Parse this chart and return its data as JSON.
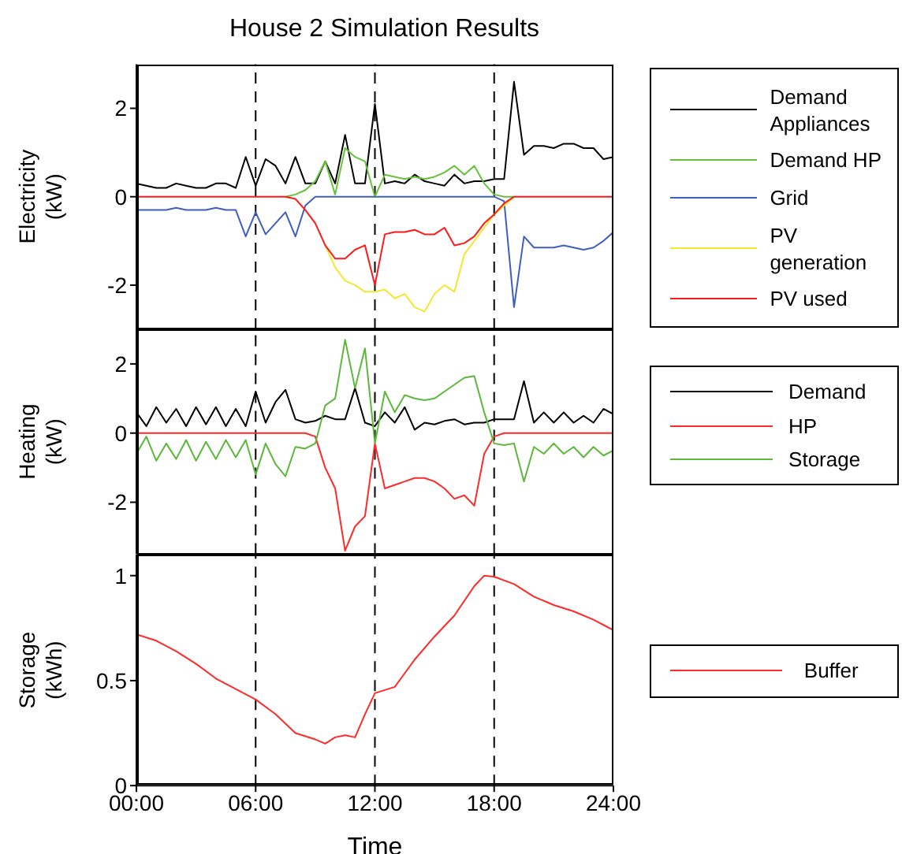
{
  "chart_data": [
    {
      "type": "line",
      "title": "House 2 Simulation Results",
      "ylabel": "Electricity (kW)",
      "legend": "right",
      "tick_labels": "y",
      "x": [
        0,
        0.5,
        1,
        1.5,
        2,
        2.5,
        3,
        3.5,
        4,
        4.5,
        5,
        5.5,
        6,
        6.5,
        7,
        7.5,
        8,
        8.5,
        9,
        9.5,
        10,
        10.5,
        11,
        11.5,
        12,
        12.5,
        13,
        13.5,
        14,
        14.5,
        15,
        15.5,
        16,
        16.5,
        17,
        17.5,
        18,
        18.5,
        19,
        19.5,
        20,
        20.5,
        21,
        21.5,
        22,
        22.5,
        23,
        23.5,
        24
      ],
      "xlim": [
        0,
        24
      ],
      "ylim": [
        -3,
        3
      ],
      "yticks": [
        -2,
        0,
        2
      ],
      "ref_lines": [
        {
          "axis": "x",
          "value": 6,
          "color": "#000000",
          "line_style": "dashed"
        },
        {
          "axis": "x",
          "value": 12,
          "color": "#000000",
          "line_style": "dashed"
        },
        {
          "axis": "x",
          "value": 18,
          "color": "#000000",
          "line_style": "dashed"
        }
      ],
      "series": [
        {
          "name": "Demand Appliances",
          "color": "#000000",
          "values": [
            0.3,
            0.25,
            0.2,
            0.2,
            0.3,
            0.25,
            0.2,
            0.2,
            0.3,
            0.3,
            0.2,
            0.9,
            0.25,
            0.85,
            0.7,
            0.3,
            0.9,
            0.3,
            0.3,
            0.8,
            0.3,
            1.4,
            0.3,
            0.3,
            2.1,
            0.3,
            0.35,
            0.3,
            0.5,
            0.35,
            0.3,
            0.25,
            0.5,
            0.3,
            0.35,
            0.35,
            0.4,
            0.4,
            2.6,
            0.95,
            1.15,
            1.15,
            1.1,
            1.2,
            1.2,
            1.1,
            1.1,
            0.85,
            0.9
          ]
        },
        {
          "name": "Demand HP",
          "color": "#66c23a",
          "values": [
            null,
            null,
            null,
            null,
            null,
            null,
            null,
            null,
            null,
            null,
            null,
            null,
            null,
            null,
            null,
            0,
            0.05,
            0.15,
            0.35,
            0.8,
            0.05,
            1.1,
            0.9,
            0.8,
            0,
            0.5,
            0.45,
            0.4,
            0.45,
            0.4,
            0.45,
            0.55,
            0.7,
            0.5,
            0.7,
            0.3,
            0.05,
            0,
            0,
            null,
            null,
            null,
            null,
            null,
            null,
            null,
            null,
            null,
            null
          ]
        },
        {
          "name": "Grid",
          "color": "#3f5fbf",
          "values": [
            -0.3,
            -0.3,
            -0.3,
            -0.3,
            -0.25,
            -0.3,
            -0.3,
            -0.3,
            -0.25,
            -0.3,
            -0.3,
            -0.9,
            -0.35,
            -0.85,
            -0.6,
            -0.35,
            -0.9,
            -0.2,
            0,
            0,
            0,
            0,
            0,
            0,
            0,
            0,
            0,
            0,
            0,
            0,
            0,
            0,
            0,
            0,
            0,
            0,
            0,
            -0.1,
            -2.5,
            -0.9,
            -1.15,
            -1.15,
            -1.15,
            -1.1,
            -1.15,
            -1.2,
            -1.15,
            -1.0,
            -0.8
          ]
        },
        {
          "name": "PV generation",
          "color": "#f2e830",
          "values": [
            null,
            null,
            null,
            null,
            null,
            null,
            null,
            null,
            null,
            null,
            null,
            null,
            null,
            null,
            null,
            null,
            null,
            null,
            null,
            -1.1,
            -1.6,
            -1.9,
            -2.0,
            -2.15,
            -2.15,
            -2.1,
            -2.3,
            -2.2,
            -2.5,
            -2.6,
            -2.2,
            -2.0,
            -2.15,
            -1.3,
            -1.0,
            -0.7,
            -0.4,
            -0.2,
            0,
            null,
            null,
            null,
            null,
            null,
            null,
            null,
            null,
            null,
            null
          ]
        },
        {
          "name": "PV used",
          "color": "#ff1a1a",
          "values": [
            0,
            0,
            0,
            0,
            0,
            0,
            0,
            0,
            0,
            0,
            0,
            0,
            0,
            0,
            0,
            0,
            -0.05,
            -0.3,
            -0.6,
            -1.1,
            -1.4,
            -1.4,
            -1.2,
            -1.1,
            -2.0,
            -0.85,
            -0.8,
            -0.8,
            -0.75,
            -0.85,
            -0.85,
            -0.7,
            -1.1,
            -1.05,
            -0.9,
            -0.6,
            -0.4,
            -0.15,
            0,
            0,
            0,
            0,
            0,
            0,
            0,
            0,
            0,
            0,
            0
          ]
        }
      ]
    },
    {
      "type": "line",
      "ylabel": "Heating (kW)",
      "legend": "right",
      "tick_labels": "y",
      "x": [
        0,
        0.5,
        1,
        1.5,
        2,
        2.5,
        3,
        3.5,
        4,
        4.5,
        5,
        5.5,
        6,
        6.5,
        7,
        7.5,
        8,
        8.5,
        9,
        9.5,
        10,
        10.5,
        11,
        11.5,
        12,
        12.5,
        13,
        13.5,
        14,
        14.5,
        15,
        15.5,
        16,
        16.5,
        17,
        17.5,
        18,
        18.5,
        19,
        19.5,
        20,
        20.5,
        21,
        21.5,
        22,
        22.5,
        23,
        23.5,
        24
      ],
      "xlim": [
        0,
        24
      ],
      "ylim": [
        -3.5,
        3
      ],
      "yticks": [
        -2,
        0,
        2
      ],
      "ref_lines": [
        {
          "axis": "x",
          "value": 6,
          "color": "#000000",
          "line_style": "dashed"
        },
        {
          "axis": "x",
          "value": 12,
          "color": "#000000",
          "line_style": "dashed"
        },
        {
          "axis": "x",
          "value": 18,
          "color": "#000000",
          "line_style": "dashed"
        }
      ],
      "series": [
        {
          "name": "Demand",
          "color": "#000000",
          "values": [
            0.6,
            0.2,
            0.75,
            0.3,
            0.7,
            0.2,
            0.75,
            0.25,
            0.75,
            0.2,
            0.7,
            0.2,
            1.2,
            0.3,
            0.9,
            1.25,
            0.4,
            0.3,
            0.35,
            0.5,
            0.4,
            0.4,
            1.3,
            0.3,
            0.2,
            0.6,
            0.3,
            0.75,
            0.1,
            0.3,
            0.25,
            0.35,
            0.4,
            0.25,
            0.3,
            0.3,
            0.4,
            0.4,
            0.4,
            1.5,
            0.3,
            0.6,
            0.3,
            0.6,
            0.3,
            0.5,
            0.3,
            0.7,
            0.55
          ]
        },
        {
          "name": "HP",
          "color": "#ff2a2a",
          "values": [
            0,
            0,
            0,
            0,
            0,
            0,
            0,
            0,
            0,
            0,
            0,
            0,
            0,
            0,
            0,
            0,
            0,
            0,
            -0.1,
            -1.0,
            -1.6,
            -3.4,
            -2.7,
            -2.4,
            -0.3,
            -1.6,
            -1.5,
            -1.4,
            -1.3,
            -1.3,
            -1.4,
            -1.6,
            -1.9,
            -1.8,
            -2.1,
            -0.6,
            -0.1,
            0,
            0,
            0,
            0,
            0,
            0,
            0,
            0,
            0,
            0,
            0,
            0
          ]
        },
        {
          "name": "Storage",
          "color": "#5cb83a",
          "values": [
            -0.6,
            -0.1,
            -0.8,
            -0.3,
            -0.75,
            -0.2,
            -0.8,
            -0.25,
            -0.75,
            -0.2,
            -0.7,
            -0.2,
            -1.2,
            -0.3,
            -0.9,
            -1.25,
            -0.4,
            -0.45,
            -0.3,
            0.8,
            1.0,
            2.7,
            1.3,
            2.45,
            -0.3,
            1.2,
            0.6,
            1.1,
            1.0,
            0.95,
            1.0,
            1.2,
            1.4,
            1.6,
            1.65,
            0.6,
            -0.3,
            -0.35,
            -0.3,
            -1.4,
            -0.4,
            -0.6,
            -0.3,
            -0.6,
            -0.4,
            -0.7,
            -0.4,
            -0.65,
            -0.5
          ]
        }
      ]
    },
    {
      "type": "line",
      "ylabel": "Storage (kWh)",
      "xlabel": "Time",
      "legend": "right",
      "x": [
        0,
        1,
        2,
        3,
        4,
        5,
        6,
        7,
        8,
        9,
        9.5,
        10,
        10.5,
        11,
        11.5,
        12,
        13,
        14,
        15,
        16,
        17,
        17.5,
        18,
        19,
        20,
        21,
        22,
        23,
        24
      ],
      "xlim": [
        0,
        24
      ],
      "xticks": [
        {
          "value": 0,
          "label": "00:00"
        },
        {
          "value": 6,
          "label": "06:00"
        },
        {
          "value": 12,
          "label": "12:00"
        },
        {
          "value": 18,
          "label": "18:00"
        },
        {
          "value": 24,
          "label": "24:00"
        }
      ],
      "ylim": [
        0,
        1.1
      ],
      "yticks": [
        0,
        0.5,
        1
      ],
      "ref_lines": [
        {
          "axis": "x",
          "value": 6,
          "color": "#000000",
          "line_style": "dashed"
        },
        {
          "axis": "x",
          "value": 12,
          "color": "#000000",
          "line_style": "dashed"
        },
        {
          "axis": "x",
          "value": 18,
          "color": "#000000",
          "line_style": "dashed"
        }
      ],
      "series": [
        {
          "name": "Buffer",
          "color": "#ff2a2a",
          "values": [
            0.72,
            0.69,
            0.64,
            0.58,
            0.51,
            0.46,
            0.41,
            0.34,
            0.25,
            0.22,
            0.2,
            0.23,
            0.24,
            0.23,
            0.34,
            0.44,
            0.47,
            0.6,
            0.71,
            0.81,
            0.95,
            1.0,
            0.995,
            0.96,
            0.9,
            0.86,
            0.83,
            0.79,
            0.74
          ]
        }
      ]
    }
  ]
}
